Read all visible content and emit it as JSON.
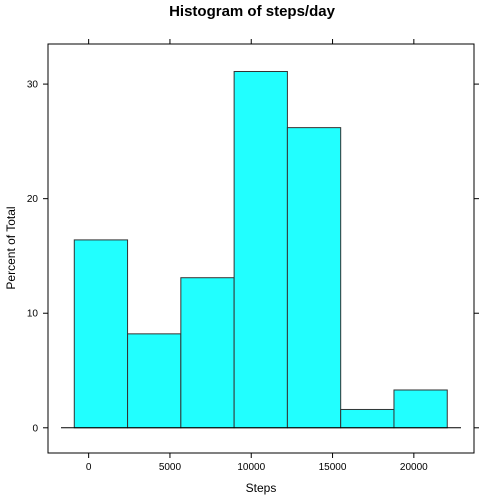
{
  "chart_data": {
    "type": "bar",
    "title": "Histogram of steps/day",
    "xlabel": "Steps",
    "ylabel": "Percent of Total",
    "bin_edges": [
      -884,
      2393,
      5670,
      8947,
      12224,
      15501,
      18778,
      22055
    ],
    "values": [
      16.4,
      8.2,
      13.1,
      31.1,
      26.2,
      1.6,
      3.3
    ],
    "xlim": [
      -2500,
      23700
    ],
    "ylim": [
      -2.2,
      33.5
    ],
    "x_ticks": [
      0,
      5000,
      10000,
      15000,
      20000
    ],
    "x_tick_labels": [
      "0",
      "5000",
      "10000",
      "15000",
      "20000"
    ],
    "y_ticks": [
      0,
      10,
      20,
      30
    ],
    "y_tick_labels": [
      "0",
      "10",
      "20",
      "30"
    ],
    "colors": {
      "bar_fill": "#21FFFF",
      "bar_stroke": "#333333",
      "axis": "#000000"
    },
    "grid": false
  }
}
